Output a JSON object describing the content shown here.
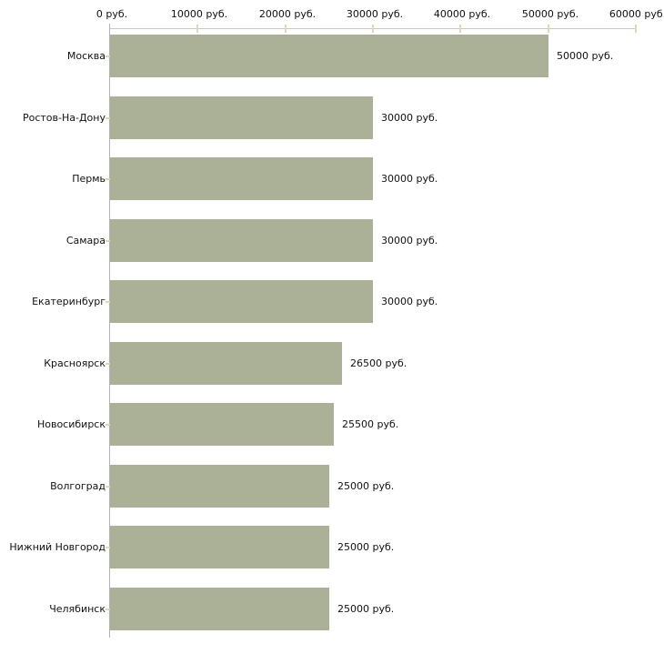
{
  "chart_data": {
    "type": "bar",
    "orientation": "horizontal",
    "title": "",
    "xlabel": "",
    "ylabel": "",
    "grid": false,
    "legend": null,
    "x_axis": {
      "position": "top",
      "range": [
        0,
        60000
      ],
      "ticks": [
        0,
        10000,
        20000,
        30000,
        40000,
        50000,
        60000
      ],
      "tick_labels": [
        "0 руб.",
        "10000 руб.",
        "20000 руб.",
        "30000 руб.",
        "40000 руб.",
        "50000 руб.",
        "60000 руб."
      ]
    },
    "categories": [
      "Москва",
      "Ростов-На-Дону",
      "Пермь",
      "Самара",
      "Екатеринбург",
      "Красноярск",
      "Новосибирск",
      "Волгоград",
      "Нижний Новгород",
      "Челябинск"
    ],
    "values": [
      50000,
      30000,
      30000,
      30000,
      30000,
      26500,
      25500,
      25000,
      25000,
      25000
    ],
    "value_labels": [
      "50000 руб.",
      "30000 руб.",
      "30000 руб.",
      "30000 руб.",
      "30000 руб.",
      "26500 руб.",
      "25500 руб.",
      "25000 руб.",
      "25000 руб.",
      "25000 руб."
    ],
    "colors": {
      "bar": "#abb197",
      "x_axis_line": "#c8c8c8",
      "y_axis_line": "#b3b3b3",
      "tick_mark": "#d9dcb0",
      "text": "#111111",
      "background": "#ffffff"
    }
  }
}
